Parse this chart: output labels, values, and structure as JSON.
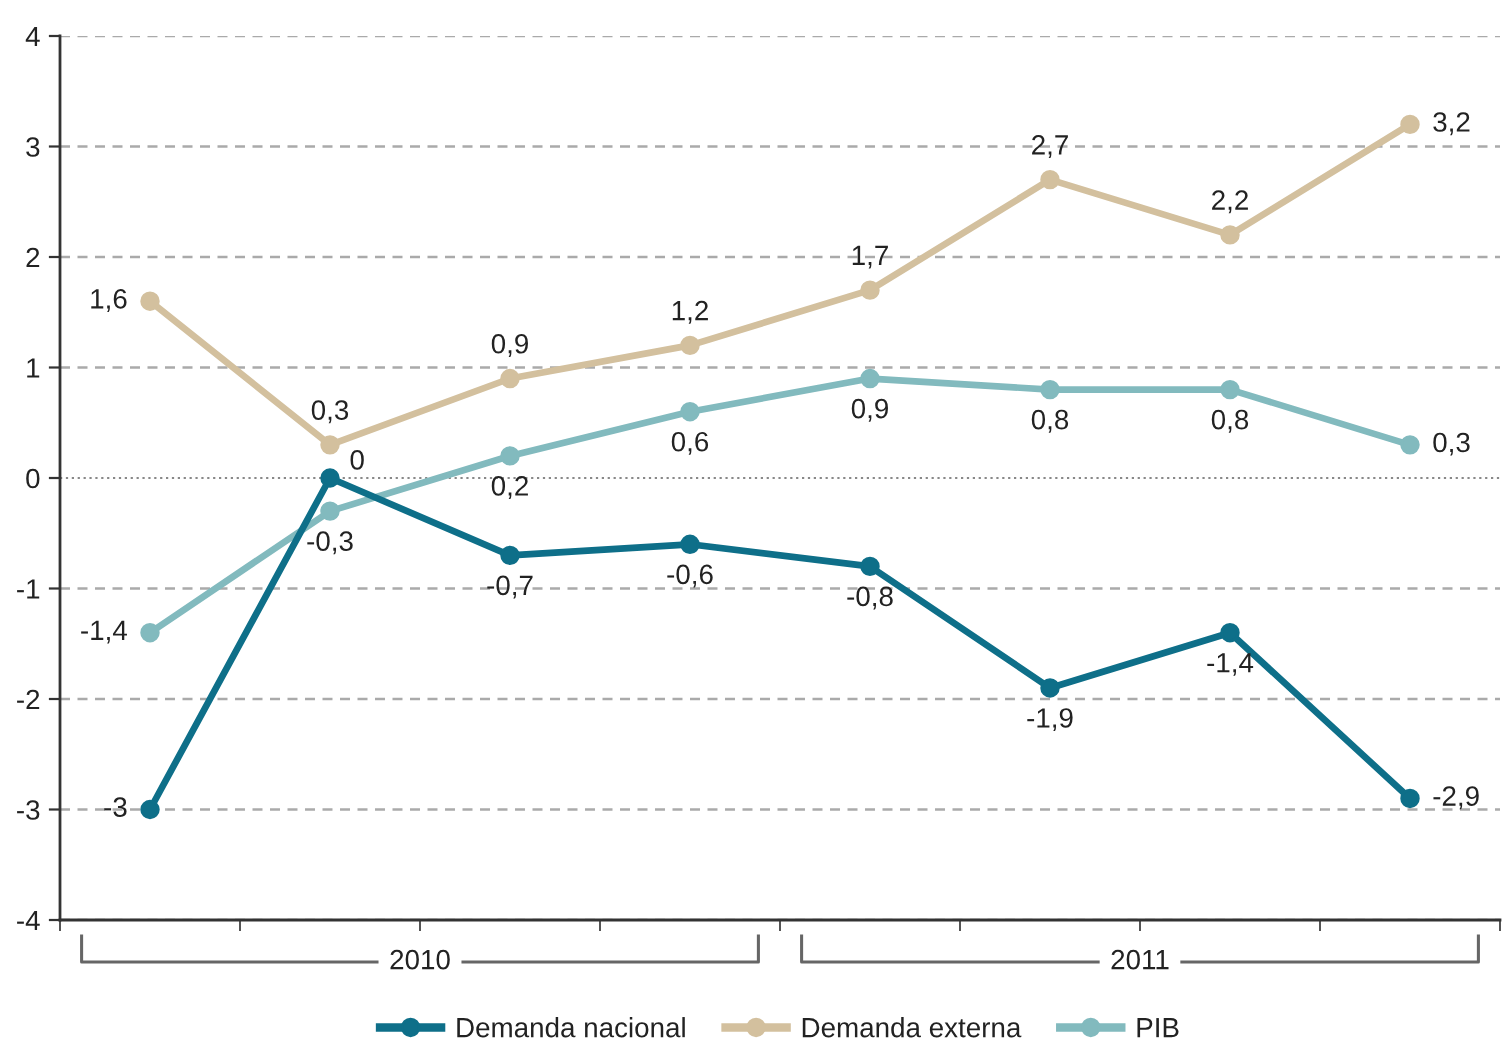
{
  "chart_data": {
    "type": "line",
    "categories": [
      null,
      null,
      null,
      null,
      null,
      null,
      null,
      null
    ],
    "series": [
      {
        "name": "Demanda nacional",
        "color": "#0e6f89",
        "values": [
          -3,
          0,
          -0.7,
          -0.6,
          -0.8,
          -1.9,
          -1.4,
          -2.9
        ],
        "value_labels": [
          "-3",
          "0",
          "-0,7",
          "-0,6",
          "-0,8",
          "-1,9",
          "-1,4",
          "-2,9"
        ]
      },
      {
        "name": "Demanda externa",
        "color": "#d3c09e",
        "values": [
          1.6,
          0.3,
          0.9,
          1.2,
          1.7,
          2.7,
          2.2,
          3.2
        ],
        "value_labels": [
          "1,6",
          "0,3",
          "0,9",
          "1,2",
          "1,7",
          "2,7",
          "2,2",
          "3,2"
        ]
      },
      {
        "name": "PIB",
        "color": "#82babe",
        "values": [
          -1.4,
          -0.3,
          0.2,
          0.6,
          0.9,
          0.8,
          0.8,
          0.3
        ],
        "value_labels": [
          "-1,4",
          "-0,3",
          "0,2",
          "0,6",
          "0,9",
          "0,8",
          "0,8",
          "0,3"
        ]
      }
    ],
    "ylim": [
      -4,
      4
    ],
    "yticks": [
      -4,
      -3,
      -2,
      -1,
      0,
      1,
      2,
      3,
      4
    ],
    "grid": "y",
    "ref_lines": [
      {
        "axis": "y",
        "value": 0,
        "line_style": "dotted",
        "color": "#888888"
      }
    ],
    "legend": "bottom",
    "marker": "circle",
    "line_style": "solid",
    "annotations": [
      "2010",
      "2011"
    ]
  }
}
